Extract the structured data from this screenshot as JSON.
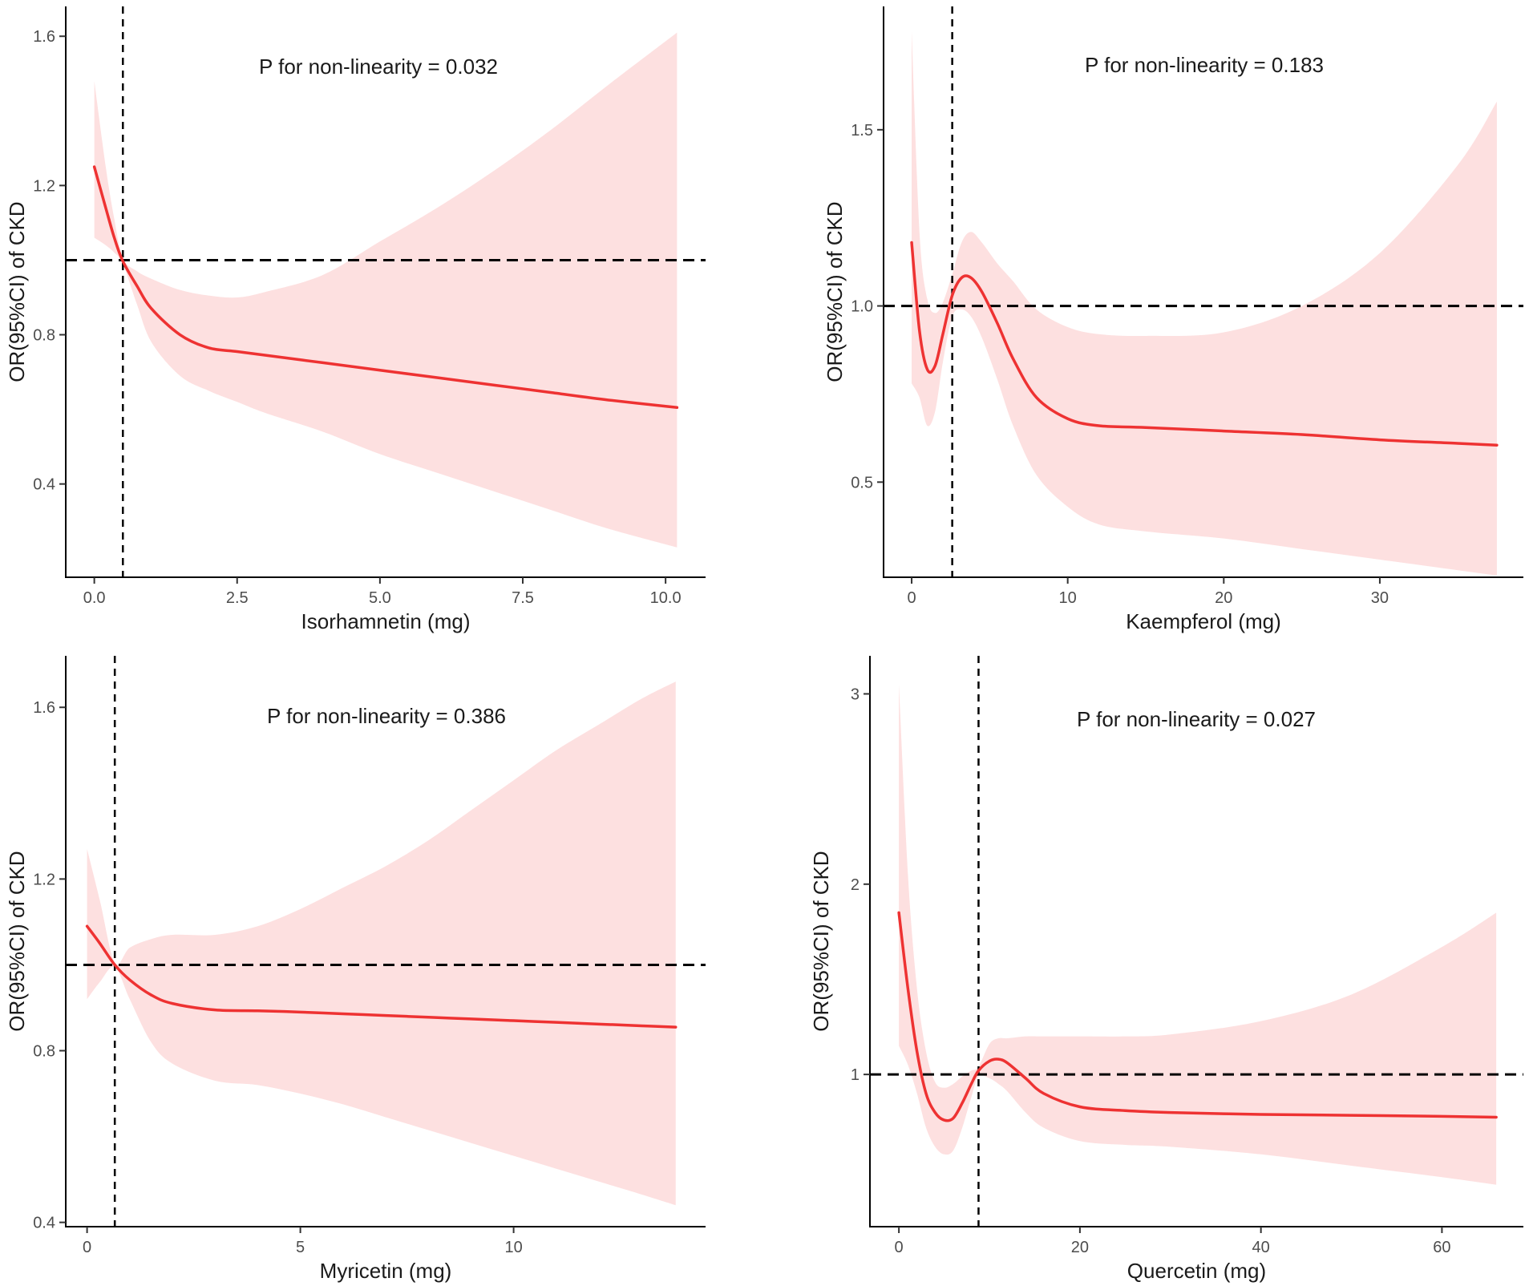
{
  "chart_data": [
    {
      "type": "line",
      "title": "",
      "xlabel": "Isorhamnetin (mg)",
      "ylabel": "OR(95%CI) of CKD",
      "annotation": "P for non-linearity = 0.032",
      "xlim": [
        -0.5,
        10.7
      ],
      "ylim": [
        0.15,
        1.68
      ],
      "xticks": [
        0,
        2.5,
        5,
        7.5,
        10
      ],
      "xtick_labels": [
        "0.0",
        "2.5",
        "5.0",
        "7.5",
        "10.0"
      ],
      "yticks": [
        0.4,
        0.8,
        1.2,
        1.6
      ],
      "ytick_labels": [
        "0.4",
        "0.8",
        "1.2",
        "1.6"
      ],
      "ref_x": 0.5,
      "ref_y": 1.0,
      "x": [
        0.0,
        0.2,
        0.35,
        0.5,
        0.75,
        1.0,
        1.5,
        2.0,
        2.5,
        3.0,
        4.0,
        5.0,
        6.0,
        7.0,
        8.0,
        9.0,
        10.2
      ],
      "y": [
        1.25,
        1.14,
        1.06,
        0.997,
        0.93,
        0.87,
        0.8,
        0.765,
        0.755,
        0.745,
        0.725,
        0.705,
        0.685,
        0.665,
        0.645,
        0.625,
        0.605
      ],
      "lower": [
        1.06,
        1.04,
        1.02,
        0.99,
        0.88,
        0.78,
        0.69,
        0.65,
        0.62,
        0.59,
        0.54,
        0.48,
        0.43,
        0.38,
        0.33,
        0.28,
        0.23
      ],
      "upper": [
        1.48,
        1.25,
        1.11,
        1.005,
        0.97,
        0.95,
        0.92,
        0.905,
        0.9,
        0.915,
        0.96,
        1.05,
        1.14,
        1.24,
        1.35,
        1.47,
        1.61
      ]
    },
    {
      "type": "line",
      "title": "",
      "xlabel": "Kaempferol (mg)",
      "ylabel": "OR(95%CI) of CKD",
      "annotation": "P for non-linearity = 0.183",
      "xlim": [
        -1.8,
        39.2
      ],
      "ylim": [
        0.23,
        1.85
      ],
      "xticks": [
        0,
        10,
        20,
        30
      ],
      "xtick_labels": [
        "0",
        "10",
        "20",
        "30"
      ],
      "yticks": [
        0.5,
        1.0,
        1.5
      ],
      "ytick_labels": [
        "0.5",
        "1.0",
        "1.5"
      ],
      "ref_x": 2.6,
      "ref_y": 1.0,
      "x": [
        0.0,
        0.5,
        1.0,
        1.5,
        2.0,
        2.6,
        3.2,
        3.8,
        4.5,
        5.5,
        6.5,
        8.0,
        10.0,
        12.0,
        15.0,
        20.0,
        25.0,
        30.0,
        35.0,
        37.5
      ],
      "y": [
        1.18,
        0.93,
        0.82,
        0.83,
        0.92,
        1.03,
        1.08,
        1.08,
        1.04,
        0.95,
        0.85,
        0.74,
        0.68,
        0.66,
        0.655,
        0.645,
        0.635,
        0.62,
        0.61,
        0.605
      ],
      "lower": [
        0.78,
        0.74,
        0.66,
        0.7,
        0.84,
        0.97,
        0.99,
        0.97,
        0.91,
        0.79,
        0.66,
        0.52,
        0.43,
        0.38,
        0.36,
        0.34,
        0.31,
        0.28,
        0.25,
        0.235
      ],
      "upper": [
        1.78,
        1.21,
        1.02,
        0.98,
        1.01,
        1.09,
        1.18,
        1.21,
        1.18,
        1.12,
        1.07,
        0.99,
        0.94,
        0.92,
        0.915,
        0.925,
        1.0,
        1.15,
        1.4,
        1.58
      ]
    },
    {
      "type": "line",
      "title": "",
      "xlabel": "Myricetin (mg)",
      "ylabel": "OR(95%CI) of CKD",
      "annotation": "P for non-linearity = 0.386",
      "xlim": [
        -0.5,
        14.5
      ],
      "ylim": [
        0.39,
        1.72
      ],
      "xticks": [
        0,
        5,
        10
      ],
      "xtick_labels": [
        "0",
        "5",
        "10"
      ],
      "yticks": [
        0.4,
        0.8,
        1.2,
        1.6
      ],
      "ytick_labels": [
        "0.4",
        "0.8",
        "1.2",
        "1.6"
      ],
      "ref_x": 0.65,
      "ref_y": 1.0,
      "x": [
        0.0,
        0.3,
        0.65,
        1.0,
        1.5,
        2.0,
        3.0,
        4.0,
        5.0,
        6.0,
        7.0,
        8.0,
        9.0,
        10.0,
        11.0,
        12.0,
        13.0,
        13.8
      ],
      "y": [
        1.09,
        1.05,
        1.0,
        0.965,
        0.93,
        0.91,
        0.895,
        0.893,
        0.89,
        0.886,
        0.882,
        0.878,
        0.874,
        0.87,
        0.866,
        0.862,
        0.858,
        0.855
      ],
      "lower": [
        0.92,
        0.96,
        0.995,
        0.92,
        0.82,
        0.77,
        0.73,
        0.72,
        0.7,
        0.675,
        0.645,
        0.615,
        0.585,
        0.555,
        0.525,
        0.495,
        0.465,
        0.44
      ],
      "upper": [
        1.27,
        1.15,
        1.005,
        1.04,
        1.06,
        1.07,
        1.07,
        1.09,
        1.13,
        1.18,
        1.23,
        1.29,
        1.36,
        1.43,
        1.5,
        1.56,
        1.62,
        1.66
      ]
    },
    {
      "type": "line",
      "title": "",
      "xlabel": "Quercetin (mg)",
      "ylabel": "OR(95%CI) of CKD",
      "annotation": "P for non-linearity = 0.027",
      "xlim": [
        -3.2,
        69
      ],
      "ylim": [
        0.2,
        3.2
      ],
      "xticks": [
        0,
        20,
        40,
        60
      ],
      "xtick_labels": [
        "0",
        "20",
        "40",
        "60"
      ],
      "yticks": [
        1,
        2,
        3
      ],
      "ytick_labels": [
        "1",
        "2",
        "3"
      ],
      "ref_x": 8.8,
      "ref_y": 1.0,
      "x": [
        0.0,
        1.0,
        2.0,
        3.0,
        4.0,
        5.0,
        6.0,
        7.0,
        8.0,
        8.8,
        10.0,
        11.0,
        12.0,
        14.0,
        16.0,
        20.0,
        25.0,
        30.0,
        40.0,
        50.0,
        60.0,
        66.0
      ],
      "y": [
        1.85,
        1.45,
        1.12,
        0.9,
        0.8,
        0.76,
        0.77,
        0.85,
        0.95,
        1.02,
        1.07,
        1.08,
        1.06,
        0.98,
        0.9,
        0.83,
        0.81,
        0.8,
        0.79,
        0.785,
        0.78,
        0.775
      ],
      "lower": [
        1.15,
        1.05,
        0.9,
        0.72,
        0.62,
        0.58,
        0.6,
        0.72,
        0.88,
        0.99,
        0.98,
        0.95,
        0.91,
        0.8,
        0.72,
        0.65,
        0.63,
        0.62,
        0.58,
        0.52,
        0.46,
        0.42
      ],
      "upper": [
        3.05,
        2.05,
        1.45,
        1.12,
        0.96,
        0.93,
        0.95,
        0.99,
        1.02,
        1.04,
        1.16,
        1.19,
        1.19,
        1.2,
        1.2,
        1.2,
        1.2,
        1.21,
        1.28,
        1.42,
        1.67,
        1.85
      ]
    }
  ]
}
